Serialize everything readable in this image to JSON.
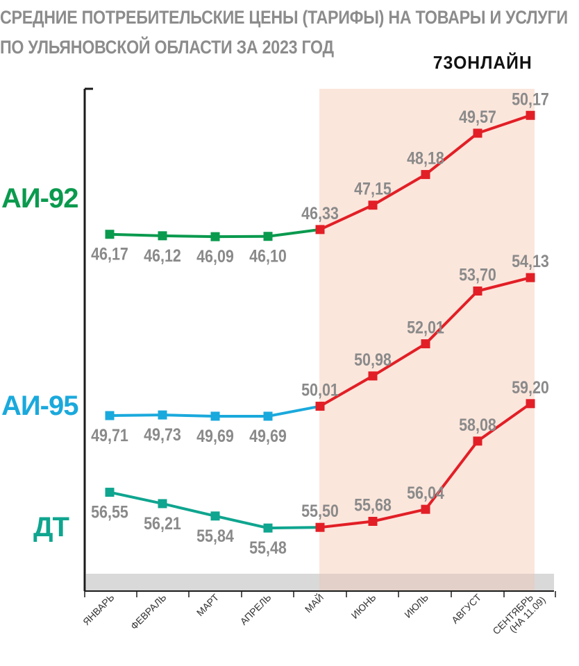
{
  "title_lines": [
    "СРЕДНИЕ ПОТРЕБИТЕЛЬСКИЕ ЦЕНЫ (ТАРИФЫ) НА ТОВАРЫ И УСЛУГИ",
    "ПО УЛЬЯНОВСКОЙ ОБЛАСТИ ЗА 2023 ГОД"
  ],
  "logo_text": "73ОНЛАЙН",
  "colors": {
    "title": "#8c8c8c",
    "ai92": "#0a9a4e",
    "ai95": "#1aa9dc",
    "dt": "#0fa58f",
    "red": "#e21f26",
    "value_label": "#8a8a8a",
    "axis": "#1a1a1a",
    "highlight": "#fbe3d8",
    "x_band": "#d9d9d9"
  },
  "chart_data": {
    "type": "line",
    "categories": [
      "ЯНВАРЬ",
      "ФЕВРАЛЬ",
      "МАРТ",
      "АПРЕЛЬ",
      "МАЙ",
      "ИЮНЬ",
      "ИЮЛЬ",
      "АВГУСТ",
      "СЕНТЯБРЬ (НА 11.09)"
    ],
    "highlight_from_category": "МАЙ",
    "series": [
      {
        "name": "АИ-92",
        "values": [
          46.17,
          46.12,
          46.09,
          46.1,
          46.33,
          47.15,
          48.18,
          49.57,
          50.17
        ],
        "labels": [
          "46,17",
          "46,12",
          "46,09",
          "46,10",
          "46,33",
          "47,15",
          "48,18",
          "49,57",
          "50,17"
        ]
      },
      {
        "name": "АИ-95",
        "values": [
          49.71,
          49.73,
          49.69,
          49.69,
          50.01,
          50.98,
          52.01,
          53.7,
          54.13
        ],
        "labels": [
          "49,71",
          "49,73",
          "49,69",
          "49,69",
          "50,01",
          "50,98",
          "52,01",
          "53,70",
          "54,13"
        ]
      },
      {
        "name": "ДТ",
        "values": [
          56.55,
          56.21,
          55.84,
          55.48,
          55.5,
          55.68,
          56.04,
          58.08,
          59.2
        ],
        "labels": [
          "56,55",
          "56,21",
          "55,84",
          "55,48",
          "55,50",
          "55,68",
          "56,04",
          "58,08",
          "59,20"
        ]
      }
    ]
  }
}
